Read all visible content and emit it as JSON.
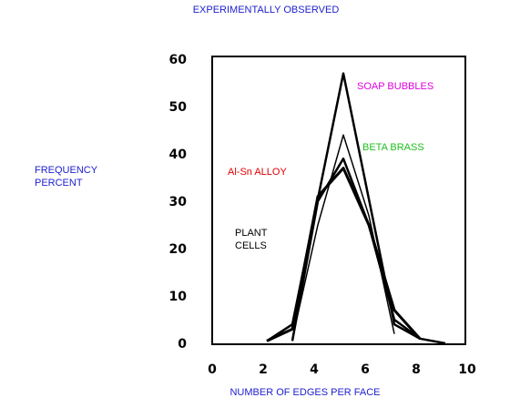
{
  "chart_data": {
    "type": "line",
    "title": "EXPERIMENTALLY OBSERVED",
    "xlabel": "NUMBER OF EDGES PER FACE",
    "ylabel_line1": "FREQUENCY",
    "ylabel_line2": "PERCENT",
    "xlim": [
      0,
      10
    ],
    "ylim": [
      0,
      60
    ],
    "x_ticks": [
      "0",
      "2",
      "4",
      "6",
      "8",
      "10"
    ],
    "y_ticks": [
      "0",
      "10",
      "20",
      "30",
      "40",
      "50",
      "60"
    ],
    "grid": false,
    "series": [
      {
        "name": "SOAP BUBBLES",
        "color": "#e000e0",
        "x": [
          2,
          3,
          5,
          7,
          8
        ],
        "y": [
          0.5,
          4,
          57,
          4,
          1
        ]
      },
      {
        "name": "BETA BRASS",
        "color": "#20c020",
        "x": [
          3,
          4,
          5,
          6,
          7
        ],
        "y": [
          1,
          25,
          44,
          27,
          2
        ]
      },
      {
        "name": "Al-Sn ALLOY",
        "color": "#e00000",
        "x": [
          2,
          3,
          4,
          5,
          6,
          7,
          8
        ],
        "y": [
          0.5,
          3,
          31,
          37,
          25,
          7,
          1
        ]
      },
      {
        "name": "PLANT CELLS",
        "color": "#000000",
        "x": [
          3,
          4,
          5,
          6,
          7,
          8,
          9
        ],
        "y": [
          0.5,
          30,
          39,
          25,
          5,
          1,
          0
        ]
      }
    ],
    "legend_labels": [
      {
        "text": "SOAP BUBBLES",
        "color": "#e000e0"
      },
      {
        "text": "BETA BRASS",
        "color": "#20c020"
      },
      {
        "text": "Al-Sn ALLOY",
        "color": "#e00000"
      },
      {
        "text": "PLANT\nCELLS",
        "color": "#000000"
      }
    ],
    "colors": {
      "title": "#2020d0",
      "axis_label": "#2020d0",
      "frame": "#000000"
    }
  }
}
